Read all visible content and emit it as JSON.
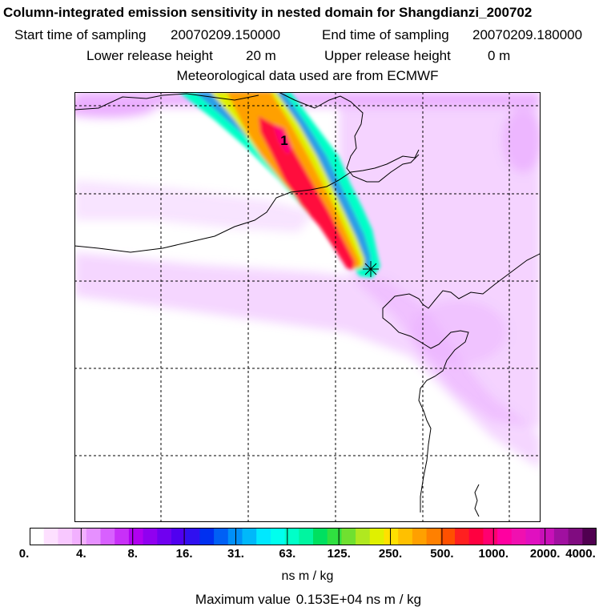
{
  "header": {
    "title": "Column-integrated emission sensitivity in nested domain for Shangdianzi_200702",
    "start_label": "Start time of sampling",
    "start_value": "20070209.150000",
    "end_label": "End time of sampling",
    "end_value": "20070209.180000",
    "lower_label": "Lower release height",
    "lower_value": "20 m",
    "upper_label": "Upper release height",
    "upper_value": "0 m",
    "met_source": "Meteorological data used are from ECMWF"
  },
  "map": {
    "plume_marker_label": "1",
    "receptor_symbol": "star-cross",
    "colors": {
      "plume_core": "#ff0a3c",
      "plume_mid": "#ffa000",
      "plume_outer": "#00ffc8",
      "background_field": "#e9a6ff",
      "coastline": "#000000",
      "grid": "#000000"
    }
  },
  "colorbar": {
    "tick_labels": [
      "0.",
      "4.",
      "8.",
      "16.",
      "31.",
      "63.",
      "125.",
      "250.",
      "500.",
      "1000.",
      "2000.",
      "4000."
    ],
    "colors": [
      "#ffffff",
      "#fde0ff",
      "#f8c8ff",
      "#f2b0ff",
      "#e690ff",
      "#d860ff",
      "#c830f8",
      "#b000f0",
      "#9000f0",
      "#7000f0",
      "#5000f0",
      "#3010f0",
      "#0030f0",
      "#0060f5",
      "#0090f8",
      "#00b8fa",
      "#00e8ff",
      "#00ffee",
      "#00ffc8",
      "#00f5a0",
      "#00e060",
      "#30e040",
      "#70e030",
      "#b0e820",
      "#e0f000",
      "#ffe000",
      "#ffc000",
      "#ffa000",
      "#ff8000",
      "#ff5000",
      "#ff2020",
      "#ff0040",
      "#ff0070",
      "#ff00a0",
      "#f010b0",
      "#e010c0",
      "#c810b8",
      "#a010a0",
      "#800c80",
      "#500050"
    ],
    "units": "ns m / kg",
    "max_label": "Maximum value",
    "max_value": "0.153E+04 ns m / kg"
  }
}
